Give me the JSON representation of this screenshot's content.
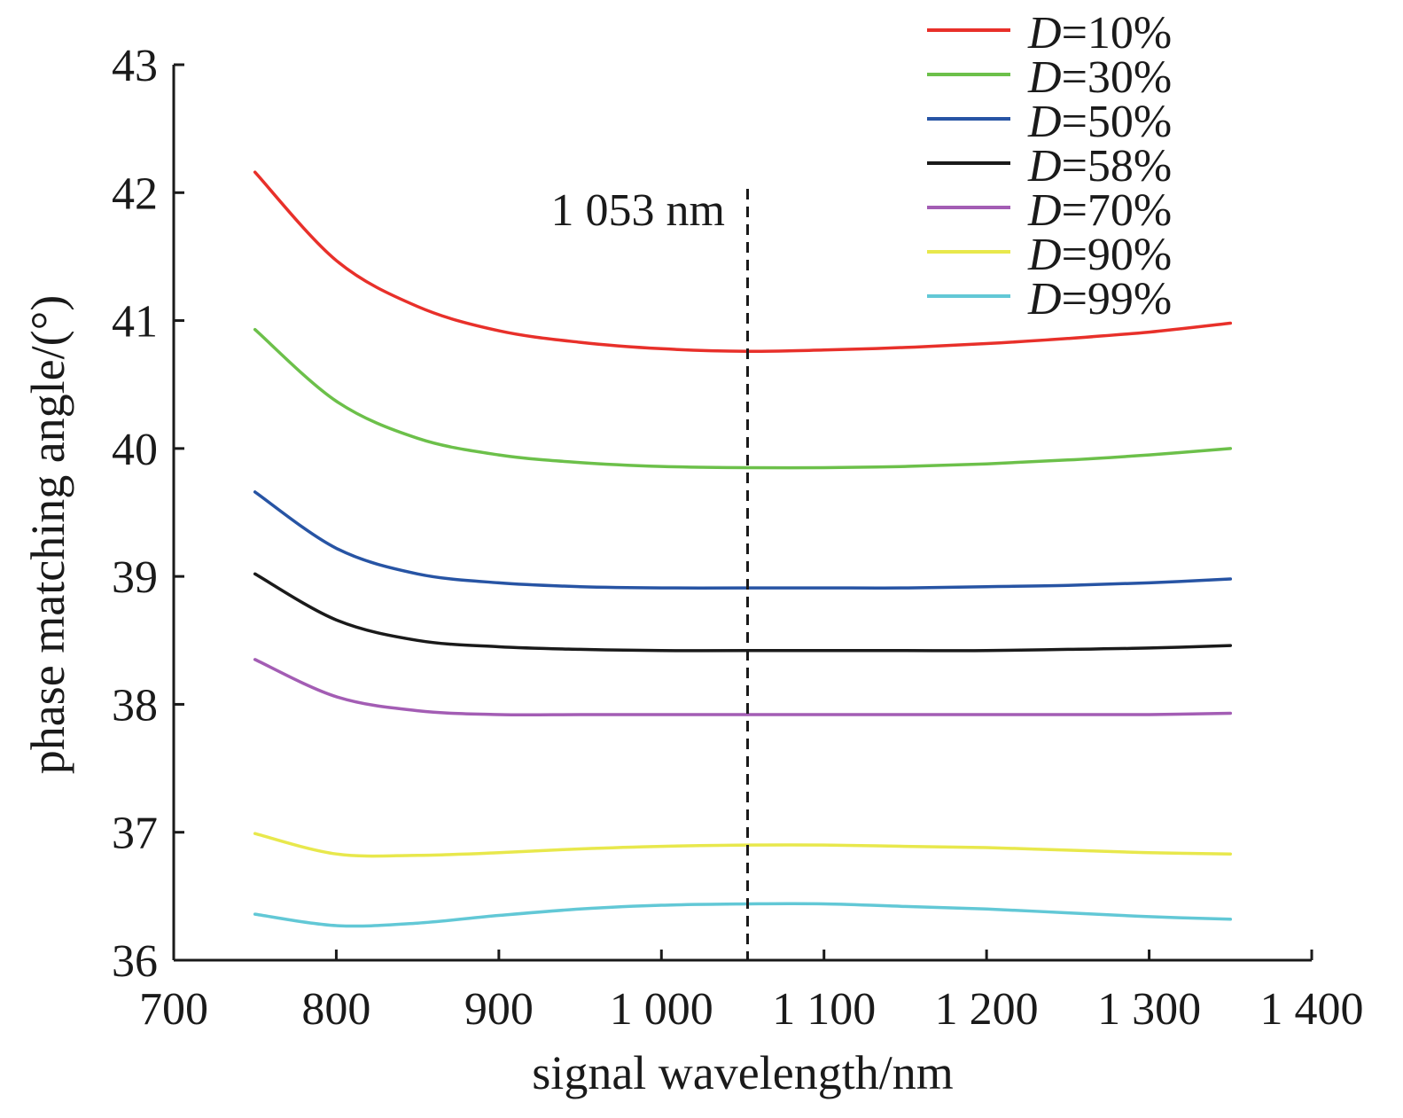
{
  "chart_data": {
    "type": "line",
    "xlabel": "signal wavelength/nm",
    "ylabel": "phase matching angle/(°)",
    "xlim": [
      700,
      1400
    ],
    "ylim": [
      36,
      43
    ],
    "xticks": [
      700,
      800,
      900,
      1000,
      1100,
      1200,
      1300,
      1400
    ],
    "xtick_labels": [
      "700",
      "800",
      "900",
      "1 000",
      "1 100",
      "1 200",
      "1 300",
      "1 400"
    ],
    "yticks": [
      36,
      37,
      38,
      39,
      40,
      41,
      42,
      43
    ],
    "ytick_labels": [
      "36",
      "37",
      "38",
      "39",
      "40",
      "41",
      "42",
      "43"
    ],
    "grid": false,
    "legend_position": "top-right",
    "annotation": {
      "text": "1 053 nm",
      "x": 1053,
      "style": "dashed vertical line"
    },
    "x": [
      750,
      800,
      850,
      900,
      950,
      1000,
      1053,
      1100,
      1150,
      1200,
      1250,
      1300,
      1350
    ],
    "series": [
      {
        "prefix": "D",
        "suffix": "=10%",
        "color": "#e8302a",
        "values": [
          42.16,
          41.47,
          41.11,
          40.92,
          40.83,
          40.78,
          40.76,
          40.77,
          40.79,
          40.82,
          40.86,
          40.91,
          40.98
        ]
      },
      {
        "prefix": "D",
        "suffix": "=30%",
        "color": "#6cc04a",
        "values": [
          40.93,
          40.37,
          40.08,
          39.95,
          39.89,
          39.86,
          39.85,
          39.85,
          39.86,
          39.88,
          39.91,
          39.95,
          40.0
        ]
      },
      {
        "prefix": "D",
        "suffix": "=50%",
        "color": "#2754a4",
        "values": [
          39.66,
          39.22,
          39.02,
          38.95,
          38.92,
          38.91,
          38.91,
          38.91,
          38.91,
          38.92,
          38.93,
          38.95,
          38.98
        ]
      },
      {
        "prefix": "D",
        "suffix": "=58%",
        "color": "#1a1a1a",
        "values": [
          39.02,
          38.66,
          38.5,
          38.45,
          38.43,
          38.42,
          38.42,
          38.42,
          38.42,
          38.42,
          38.43,
          38.44,
          38.46
        ]
      },
      {
        "prefix": "D",
        "suffix": "=70%",
        "color": "#a35db4",
        "values": [
          38.35,
          38.06,
          37.95,
          37.92,
          37.92,
          37.92,
          37.92,
          37.92,
          37.92,
          37.92,
          37.92,
          37.92,
          37.93
        ]
      },
      {
        "prefix": "D",
        "suffix": "=90%",
        "color": "#e8e84c",
        "values": [
          36.99,
          36.83,
          36.82,
          36.84,
          36.87,
          36.89,
          36.9,
          36.9,
          36.89,
          36.88,
          36.86,
          36.84,
          36.83
        ]
      },
      {
        "prefix": "D",
        "suffix": "=99%",
        "color": "#62c8d6",
        "values": [
          36.36,
          36.27,
          36.29,
          36.35,
          36.4,
          36.43,
          36.44,
          36.44,
          36.42,
          36.4,
          36.37,
          36.34,
          36.32
        ]
      }
    ]
  }
}
